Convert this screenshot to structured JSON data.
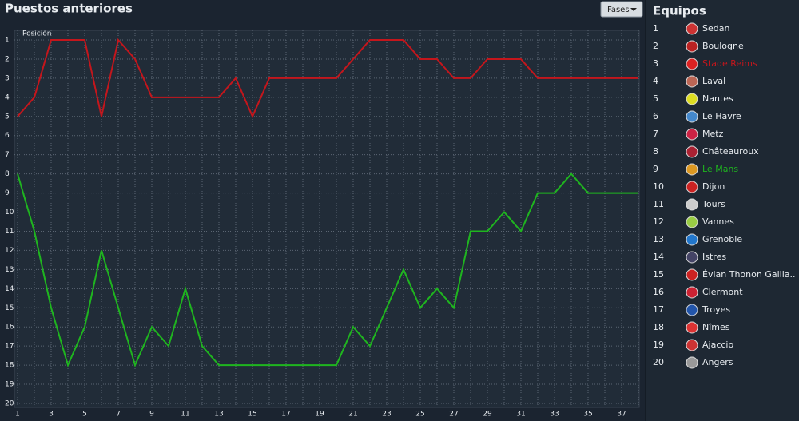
{
  "header": {
    "title": "Puestos anteriores",
    "button": "Fases",
    "panel_title": "Equipos"
  },
  "chart_data": {
    "type": "line",
    "y_label": "Posición",
    "x": [
      1,
      2,
      3,
      4,
      5,
      6,
      7,
      8,
      9,
      10,
      11,
      12,
      13,
      14,
      15,
      16,
      17,
      18,
      19,
      20,
      21,
      22,
      23,
      24,
      25,
      26,
      27,
      28,
      29,
      30,
      31,
      32,
      33,
      34,
      35,
      36,
      37,
      38
    ],
    "series": [
      {
        "name": "Stade Reims",
        "rank": 3,
        "color": "#c4161c",
        "values": [
          5,
          4,
          1,
          1,
          1,
          5,
          1,
          2,
          4,
          4,
          4,
          4,
          4,
          3,
          5,
          3,
          3,
          3,
          3,
          3,
          2,
          1,
          1,
          1,
          2,
          2,
          3,
          3,
          2,
          2,
          2,
          3,
          3,
          3,
          3,
          3,
          3,
          3
        ]
      },
      {
        "name": "Le Mans",
        "rank": 9,
        "color": "#1fb51f",
        "values": [
          8,
          11,
          15,
          18,
          16,
          12,
          15,
          18,
          16,
          17,
          14,
          17,
          18,
          18,
          18,
          18,
          18,
          18,
          18,
          18,
          16,
          17,
          15,
          13,
          15,
          14,
          15,
          11,
          11,
          10,
          11,
          9,
          9,
          8,
          9,
          9,
          9,
          9
        ]
      }
    ],
    "xlim": [
      1,
      38
    ],
    "xticks": [
      1,
      3,
      5,
      7,
      9,
      11,
      13,
      15,
      17,
      19,
      21,
      23,
      25,
      27,
      29,
      31,
      33,
      35,
      37
    ],
    "xminorticks": [
      2,
      4,
      6,
      8,
      10,
      12,
      14,
      16,
      18,
      20,
      22,
      24,
      26,
      28,
      30,
      32,
      34,
      36,
      38
    ],
    "ylim": [
      20,
      1
    ],
    "yticks": [
      1,
      2,
      3,
      4,
      5,
      6,
      7,
      8,
      9,
      10,
      11,
      12,
      13,
      14,
      15,
      16,
      17,
      18,
      19,
      20
    ],
    "grid": true
  },
  "teams": [
    {
      "rank": 1,
      "name": "Sedan"
    },
    {
      "rank": 2,
      "name": "Boulogne"
    },
    {
      "rank": 4,
      "name": "Laval"
    },
    {
      "rank": 5,
      "name": "Nantes"
    },
    {
      "rank": 6,
      "name": "Le Havre"
    },
    {
      "rank": 7,
      "name": "Metz"
    },
    {
      "rank": 8,
      "name": "Châteauroux"
    },
    {
      "rank": 10,
      "name": "Dijon"
    },
    {
      "rank": 11,
      "name": "Tours"
    },
    {
      "rank": 12,
      "name": "Vannes"
    },
    {
      "rank": 13,
      "name": "Grenoble"
    },
    {
      "rank": 14,
      "name": "Istres"
    },
    {
      "rank": 15,
      "name": "Évian Thonon Gailla.."
    },
    {
      "rank": 16,
      "name": "Clermont"
    },
    {
      "rank": 17,
      "name": "Troyes"
    },
    {
      "rank": 18,
      "name": "Nîmes"
    },
    {
      "rank": 19,
      "name": "Ajaccio"
    },
    {
      "rank": 20,
      "name": "Angers"
    }
  ]
}
